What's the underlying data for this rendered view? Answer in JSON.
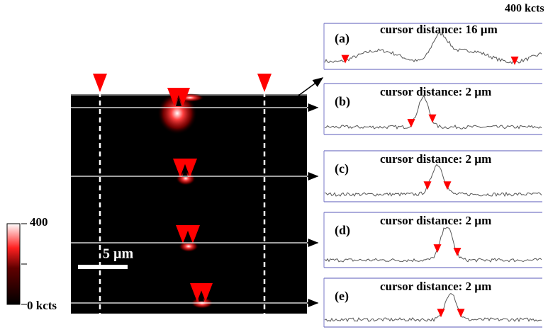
{
  "figure": {
    "image": {
      "scale_bar": "5 µm"
    },
    "colorbar": {
      "max_label": "400",
      "min_label": "0 kcts"
    },
    "profiles": {
      "max_label": "400 kcts",
      "panels": [
        {
          "label": "(a)",
          "caption": "cursor distance: 16 µm"
        },
        {
          "label": "(b)",
          "caption": "cursor distance: 2 µm"
        },
        {
          "label": "(c)",
          "caption": "cursor distance: 2 µm"
        },
        {
          "label": "(d)",
          "caption": "cursor distance: 2 µm"
        },
        {
          "label": "(e)",
          "caption": "cursor distance: 2 µm"
        }
      ]
    }
  }
}
